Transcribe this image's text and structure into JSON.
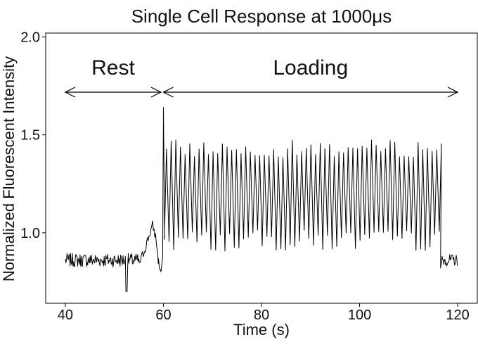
{
  "chart_data": {
    "type": "line",
    "title": "Single Cell Response at 1000μs",
    "xlabel": "Time (s)",
    "ylabel": "Normalized Fluorescent Intensity",
    "xlim": [
      36,
      124
    ],
    "ylim": [
      0.64,
      2.02
    ],
    "x_ticks": [
      40,
      60,
      80,
      100,
      120
    ],
    "x_tick_labels": [
      "40",
      "60",
      "80",
      "100",
      "120"
    ],
    "y_ticks": [
      1.0,
      1.5,
      2.0
    ],
    "y_tick_labels": [
      "1.0",
      "1.5",
      "2.0"
    ],
    "grid": false,
    "legend": "none",
    "annotations": [
      {
        "text": "Rest",
        "from_x": 40,
        "to_x": 59.5
      },
      {
        "text": "Loading",
        "from_x": 60,
        "to_x": 120
      }
    ],
    "series": [
      {
        "color": "#000000",
        "segments": {
          "rest": {
            "x_start": 40,
            "x_end": 55,
            "mean": 0.86,
            "noise": 0.035,
            "min_dip": 0.7
          },
          "pre_rise": {
            "x_start": 55,
            "x_end": 59.5,
            "points": [
              [
                55.0,
                0.84
              ],
              [
                56.0,
                0.9
              ],
              [
                57.0,
                0.98
              ],
              [
                57.8,
                1.04
              ],
              [
                58.5,
                0.97
              ],
              [
                59.0,
                0.85
              ],
              [
                59.5,
                0.8
              ]
            ]
          },
          "spike": {
            "x": 60,
            "y": 1.64
          },
          "oscillation": {
            "x_start": 60.2,
            "x_end": 116.5,
            "period": 0.95,
            "peak_mean": 1.43,
            "trough_mean": 0.96
          },
          "recovery": {
            "x_start": 116.5,
            "x_end": 120,
            "mean": 0.86,
            "noise": 0.03
          }
        }
      }
    ]
  }
}
